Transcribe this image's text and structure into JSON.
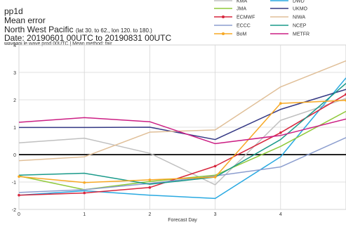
{
  "header": {
    "product": "pp1d",
    "metric": "Mean error",
    "region": "North West Pacific",
    "region_bounds": "(lat 30. to 62., lon 120. to 180.)",
    "date_range": "Date: 20190601 00UTC to 20190831 00UTC",
    "note": "waveapi le wave prod 00UTC | Mean method: fair"
  },
  "chart_data": {
    "type": "line",
    "xlabel": "Forecast Day",
    "ylabel": "",
    "xlim": [
      0,
      5
    ],
    "ylim": [
      -2,
      4
    ],
    "x_ticks": [
      0,
      1,
      2,
      3,
      4
    ],
    "y_ticks": [
      -2,
      -1,
      0,
      1,
      2,
      3,
      4
    ],
    "grid": true,
    "legend_position": "top",
    "x": [
      0,
      1,
      2,
      3,
      4,
      5
    ],
    "series": [
      {
        "name": "KMA",
        "color": "#c0c0c0",
        "values": [
          0.43,
          0.6,
          0.05,
          -1.1,
          1.25,
          2.05
        ]
      },
      {
        "name": "DWD",
        "color": "#29a9e1",
        "values": [
          -1.48,
          -1.32,
          -1.48,
          -1.6,
          -0.08,
          2.8
        ]
      },
      {
        "name": "JMA",
        "color": "#8fc93a",
        "values": [
          -0.78,
          -1.28,
          -0.98,
          -0.75,
          0.3,
          1.58
        ]
      },
      {
        "name": "UKMO",
        "color": "#343884",
        "values": [
          0.99,
          0.99,
          1.0,
          0.55,
          1.65,
          2.38
        ]
      },
      {
        "name": "ECMWF",
        "color": "#d7263d",
        "values": [
          -1.48,
          -1.4,
          -1.2,
          -0.42,
          0.8,
          2.2
        ]
      },
      {
        "name": "NIWA",
        "color": "#e0bf98",
        "values": [
          -0.22,
          -0.08,
          0.82,
          0.9,
          2.47,
          3.42
        ]
      },
      {
        "name": "ECCC",
        "color": "#8c9ecf",
        "values": [
          -1.38,
          -1.28,
          -1.05,
          -0.78,
          -0.45,
          0.62
        ]
      },
      {
        "name": "NCEP",
        "color": "#1a9a8a",
        "values": [
          -0.75,
          -0.68,
          -1.08,
          -0.82,
          0.55,
          2.6
        ]
      },
      {
        "name": "BoM",
        "color": "#f7a823",
        "values": [
          -0.8,
          -1.02,
          -0.92,
          -0.82,
          1.87,
          1.98
        ]
      },
      {
        "name": "METFR",
        "color": "#cc1f84",
        "values": [
          1.18,
          1.35,
          1.2,
          0.4,
          0.7,
          1.3
        ]
      }
    ]
  }
}
